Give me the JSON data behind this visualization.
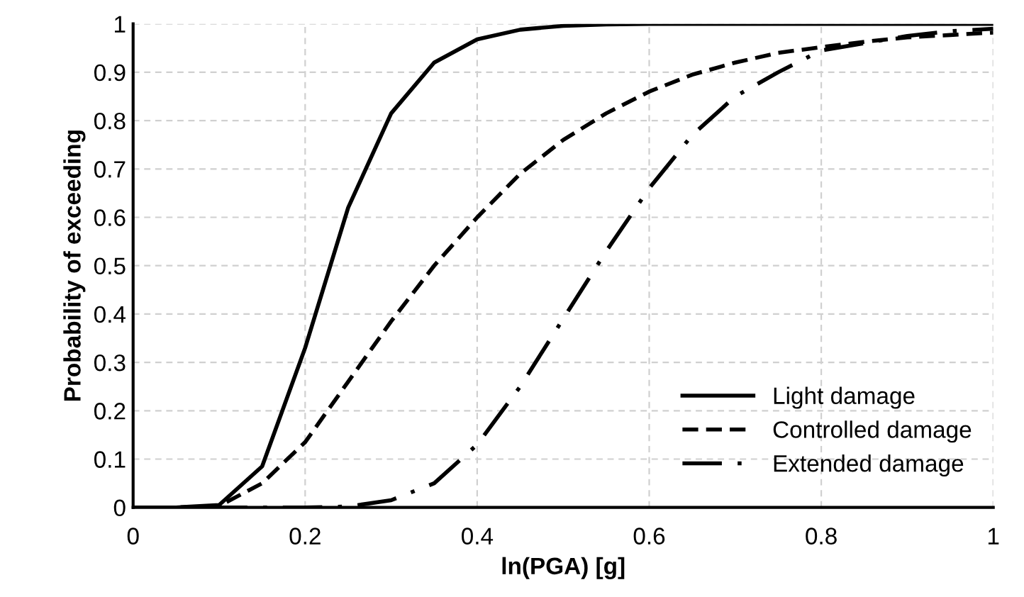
{
  "chart_data": {
    "type": "line",
    "xlabel": "ln(PGA) [g]",
    "ylabel": "Probability of exceeding",
    "x": [
      0,
      0.05,
      0.1,
      0.15,
      0.2,
      0.25,
      0.3,
      0.35,
      0.4,
      0.45,
      0.5,
      0.55,
      0.6,
      0.65,
      0.7,
      0.75,
      0.8,
      0.85,
      0.9,
      0.95,
      1
    ],
    "series": [
      {
        "name": "Light damage",
        "color": "#000000",
        "line_style": "solid",
        "values": [
          0,
          0,
          0.005,
          0.085,
          0.33,
          0.62,
          0.815,
          0.92,
          0.968,
          0.988,
          0.996,
          0.999,
          1,
          1,
          1,
          1,
          1,
          1,
          1,
          1,
          1
        ]
      },
      {
        "name": "Controlled damage",
        "color": "#000000",
        "line_style": "dashed",
        "values": [
          0,
          0,
          0.003,
          0.05,
          0.135,
          0.26,
          0.385,
          0.5,
          0.6,
          0.69,
          0.76,
          0.815,
          0.86,
          0.895,
          0.92,
          0.94,
          0.952,
          0.963,
          0.972,
          0.977,
          0.982
        ]
      },
      {
        "name": "Extended damage",
        "color": "#000000",
        "line_style": "dashdot",
        "values": [
          0,
          0,
          0,
          0,
          0,
          0.002,
          0.015,
          0.05,
          0.13,
          0.25,
          0.39,
          0.53,
          0.66,
          0.77,
          0.85,
          0.9,
          0.945,
          0.96,
          0.975,
          0.985,
          0.99
        ]
      }
    ],
    "xlim": [
      0,
      1
    ],
    "xticks": [
      0,
      0.2,
      0.4,
      0.6,
      0.8,
      1
    ],
    "ylim": [
      0,
      1
    ],
    "yticks": [
      0,
      0.1,
      0.2,
      0.3,
      0.4,
      0.5,
      0.6,
      0.7,
      0.8,
      0.9,
      1
    ],
    "grid": true,
    "legend": "bottom right",
    "marker": "none"
  }
}
